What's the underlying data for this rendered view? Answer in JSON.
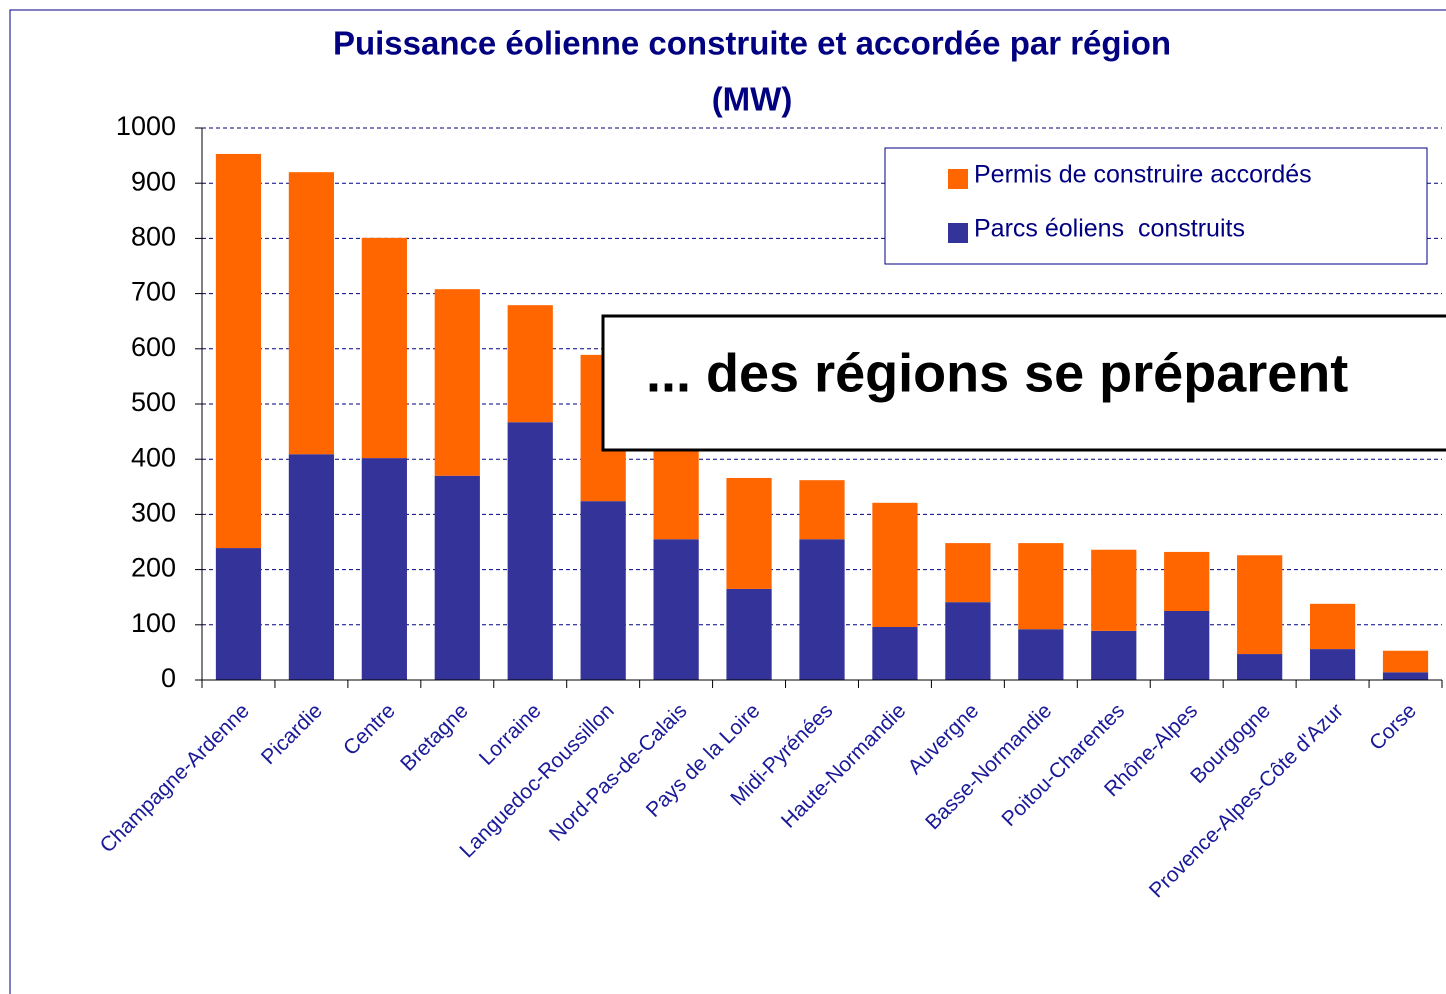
{
  "chart_data": {
    "type": "stacked-bar",
    "title": "Puissance éolienne construite et accordée par région",
    "subtitle": "(MW)",
    "annotation": "... des régions se préparent",
    "categories": [
      "Champagne-Ardenne",
      "Picardie",
      "Centre",
      "Bretagne",
      "Lorraine",
      "Languedoc-Roussillon",
      "Nord-Pas-de-Calais",
      "Pays de la Loire",
      "Midi-Pyrénées",
      "Haute-Normandie",
      "Auvergne",
      "Basse-Normandie",
      "Poitou-Charentes",
      "Rhône-Alpes",
      "Bourgogne",
      "Provence-Alpes-Côte d'Azur",
      "Corse"
    ],
    "series": [
      {
        "name": "Parcs éoliens  construits",
        "color": "#333399",
        "values": [
          239,
          409,
          402,
          370,
          467,
          324,
          255,
          165,
          255,
          96,
          141,
          92,
          89,
          125,
          47,
          56,
          14
        ]
      },
      {
        "name": "Permis de construire accordés",
        "color": "#ff6600",
        "values": [
          714,
          511,
          399,
          338,
          212,
          265,
          185,
          201,
          107,
          225,
          107,
          156,
          147,
          107,
          179,
          82,
          39
        ]
      }
    ],
    "ylim": [
      0,
      1000
    ],
    "yticks": [
      0,
      100,
      200,
      300,
      400,
      500,
      600,
      700,
      800,
      900,
      1000
    ],
    "grid": true,
    "legend": "top-right"
  }
}
